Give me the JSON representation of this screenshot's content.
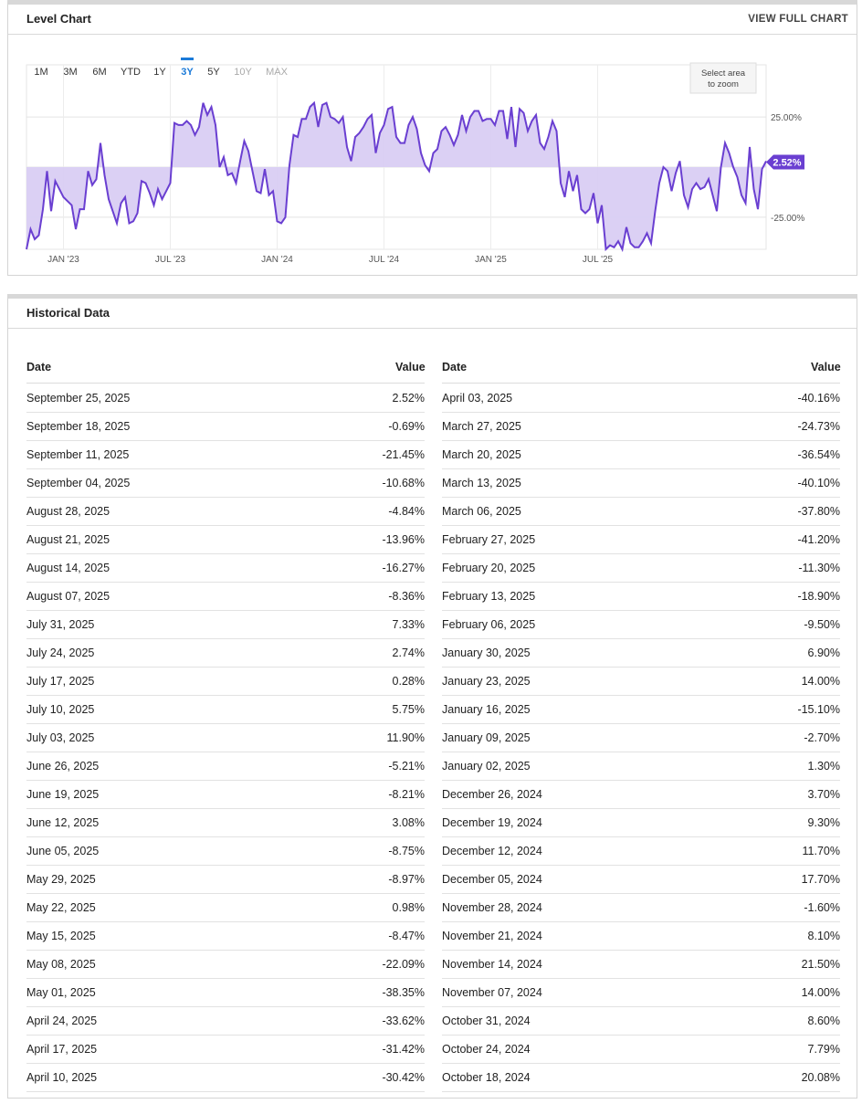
{
  "level_chart": {
    "title": "Level Chart",
    "view_full_chart": "VIEW FULL CHART",
    "ranges": [
      "1M",
      "3M",
      "6M",
      "YTD",
      "1Y",
      "3Y",
      "5Y",
      "10Y",
      "MAX"
    ],
    "active_range": "3Y",
    "disabled_ranges": [
      "10Y",
      "MAX"
    ],
    "zoom_hint_line1": "Select area",
    "zoom_hint_line2": "to zoom",
    "current_value_label": "2.52%",
    "accent_color": "#6a3fd1",
    "fill_color": "#d9cdf3",
    "active_color": "#1b7ad8"
  },
  "chart_data": {
    "type": "area",
    "y_ticks": [
      "25.00%",
      "-25.00%"
    ],
    "y_tick_values": [
      25,
      -25
    ],
    "x_tick_labels": [
      "JAN '23",
      "JUL '23",
      "JAN '24",
      "JUL '24",
      "JAN '25",
      "JUL '25"
    ],
    "x_tick_weeks": [
      9,
      35,
      61,
      87,
      113,
      139
    ],
    "series": [
      {
        "values": [
          -41,
          -31,
          -36,
          -34,
          -21,
          -2,
          -22,
          -7,
          -11,
          -15,
          -17,
          -19,
          -31,
          -21,
          -21,
          -2,
          -9,
          -6,
          12,
          -4,
          -16,
          -22,
          -28,
          -18,
          -15,
          -28,
          -27,
          -23,
          -7,
          -8,
          -13,
          -19,
          -11,
          -16,
          -12,
          -8,
          22,
          21,
          21,
          23,
          21,
          16,
          20,
          32,
          26,
          30,
          21,
          0,
          5,
          -4,
          -3,
          -8,
          3,
          13,
          8,
          -2,
          -12,
          -13,
          -1,
          -14,
          -12,
          -27,
          -28,
          -25,
          1,
          16,
          15,
          24,
          24,
          30,
          32,
          20,
          31,
          32,
          25,
          24,
          22,
          25,
          10,
          3,
          15,
          17,
          20,
          24,
          26,
          7,
          17,
          21,
          29,
          30,
          15,
          12,
          12,
          21,
          25,
          19,
          7,
          1,
          -2,
          7,
          9,
          18,
          20,
          16,
          11,
          16,
          26,
          18,
          25,
          28,
          28,
          23,
          24,
          24,
          21,
          28,
          28,
          14,
          30,
          10,
          29,
          27,
          18,
          23,
          26,
          12,
          9,
          15,
          23,
          18,
          -8,
          -15,
          -2,
          -12,
          -4,
          -21,
          -23,
          -21,
          -13,
          -28,
          -19,
          -41,
          -39,
          -40,
          -37,
          -41,
          -30,
          -38,
          -40,
          -40,
          -37,
          -33,
          -38,
          -22,
          -8,
          0,
          -2,
          -12,
          -3,
          3,
          -14,
          -20,
          -11,
          -8,
          -11,
          -10,
          -6,
          -14,
          -22,
          0,
          12,
          7,
          0,
          -5,
          -14,
          -18,
          10,
          -11,
          -21,
          -1,
          3
        ],
        "note": "weekly level in %, Sep 2022 – Sep 2025"
      }
    ],
    "ylim": [
      -41,
      51
    ],
    "grid": true,
    "last_value": 2.52
  },
  "historical": {
    "title": "Historical Data",
    "col_date": "Date",
    "col_value": "Value",
    "left": [
      {
        "date": "September 25, 2025",
        "value": "2.52%"
      },
      {
        "date": "September 18, 2025",
        "value": "-0.69%"
      },
      {
        "date": "September 11, 2025",
        "value": "-21.45%"
      },
      {
        "date": "September 04, 2025",
        "value": "-10.68%"
      },
      {
        "date": "August 28, 2025",
        "value": "-4.84%"
      },
      {
        "date": "August 21, 2025",
        "value": "-13.96%"
      },
      {
        "date": "August 14, 2025",
        "value": "-16.27%"
      },
      {
        "date": "August 07, 2025",
        "value": "-8.36%"
      },
      {
        "date": "July 31, 2025",
        "value": "7.33%"
      },
      {
        "date": "July 24, 2025",
        "value": "2.74%"
      },
      {
        "date": "July 17, 2025",
        "value": "0.28%"
      },
      {
        "date": "July 10, 2025",
        "value": "5.75%"
      },
      {
        "date": "July 03, 2025",
        "value": "11.90%"
      },
      {
        "date": "June 26, 2025",
        "value": "-5.21%"
      },
      {
        "date": "June 19, 2025",
        "value": "-8.21%"
      },
      {
        "date": "June 12, 2025",
        "value": "3.08%"
      },
      {
        "date": "June 05, 2025",
        "value": "-8.75%"
      },
      {
        "date": "May 29, 2025",
        "value": "-8.97%"
      },
      {
        "date": "May 22, 2025",
        "value": "0.98%"
      },
      {
        "date": "May 15, 2025",
        "value": "-8.47%"
      },
      {
        "date": "May 08, 2025",
        "value": "-22.09%"
      },
      {
        "date": "May 01, 2025",
        "value": "-38.35%"
      },
      {
        "date": "April 24, 2025",
        "value": "-33.62%"
      },
      {
        "date": "April 17, 2025",
        "value": "-31.42%"
      },
      {
        "date": "April 10, 2025",
        "value": "-30.42%"
      }
    ],
    "right": [
      {
        "date": "April 03, 2025",
        "value": "-40.16%"
      },
      {
        "date": "March 27, 2025",
        "value": "-24.73%"
      },
      {
        "date": "March 20, 2025",
        "value": "-36.54%"
      },
      {
        "date": "March 13, 2025",
        "value": "-40.10%"
      },
      {
        "date": "March 06, 2025",
        "value": "-37.80%"
      },
      {
        "date": "February 27, 2025",
        "value": "-41.20%"
      },
      {
        "date": "February 20, 2025",
        "value": "-11.30%"
      },
      {
        "date": "February 13, 2025",
        "value": "-18.90%"
      },
      {
        "date": "February 06, 2025",
        "value": "-9.50%"
      },
      {
        "date": "January 30, 2025",
        "value": "6.90%"
      },
      {
        "date": "January 23, 2025",
        "value": "14.00%"
      },
      {
        "date": "January 16, 2025",
        "value": "-15.10%"
      },
      {
        "date": "January 09, 2025",
        "value": "-2.70%"
      },
      {
        "date": "January 02, 2025",
        "value": "1.30%"
      },
      {
        "date": "December 26, 2024",
        "value": "3.70%"
      },
      {
        "date": "December 19, 2024",
        "value": "9.30%"
      },
      {
        "date": "December 12, 2024",
        "value": "11.70%"
      },
      {
        "date": "December 05, 2024",
        "value": "17.70%"
      },
      {
        "date": "November 28, 2024",
        "value": "-1.60%"
      },
      {
        "date": "November 21, 2024",
        "value": "8.10%"
      },
      {
        "date": "November 14, 2024",
        "value": "21.50%"
      },
      {
        "date": "November 07, 2024",
        "value": "14.00%"
      },
      {
        "date": "October 31, 2024",
        "value": "8.60%"
      },
      {
        "date": "October 24, 2024",
        "value": "7.79%"
      },
      {
        "date": "October 18, 2024",
        "value": "20.08%"
      }
    ]
  }
}
